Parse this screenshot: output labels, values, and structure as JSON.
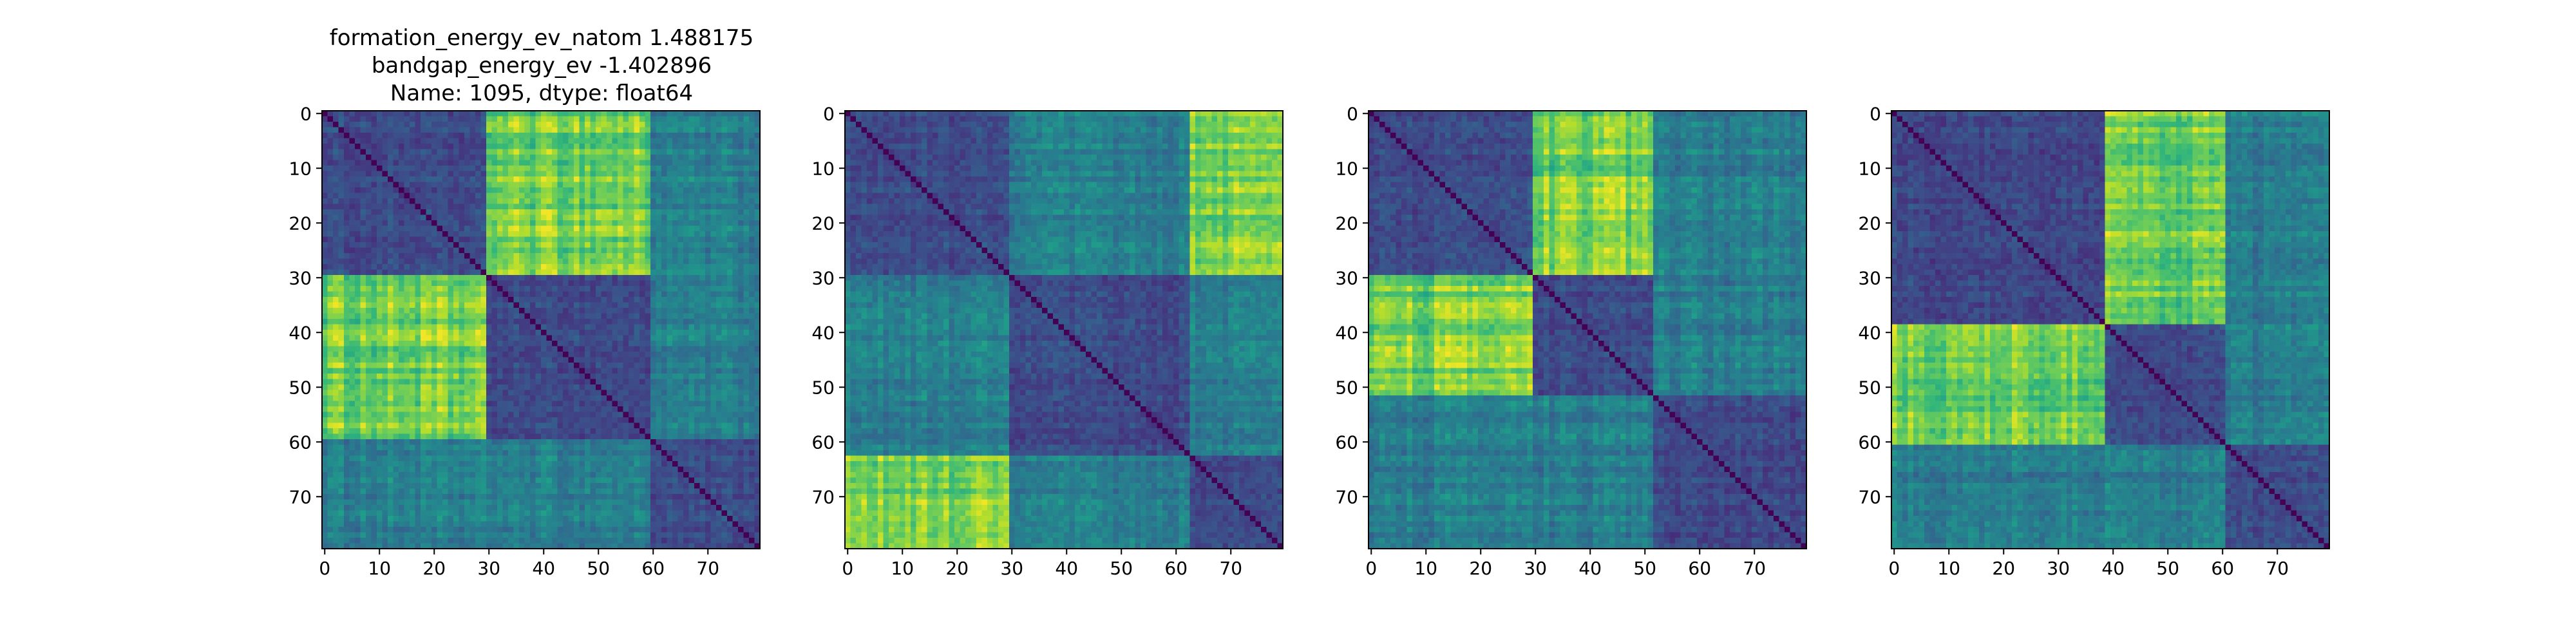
{
  "figure": {
    "title_lines": [
      "formation_energy_ev_natom    1.488175",
      "bandgap_energy_ev           -1.402896",
      "Name: 1095, dtype: float64"
    ]
  },
  "chart_data": [
    {
      "type": "heatmap",
      "title": "",
      "size": 80,
      "colormap": "viridis",
      "diagonal": "minimum",
      "groups": [
        30,
        30,
        20
      ],
      "bright_off_block": [
        0,
        1
      ],
      "xticks": [
        0,
        10,
        20,
        30,
        40,
        50,
        60,
        70
      ],
      "yticks": [
        0,
        10,
        20,
        30,
        40,
        50,
        60,
        70
      ],
      "xlim": [
        0,
        79
      ],
      "ylim": [
        79,
        0
      ]
    },
    {
      "type": "heatmap",
      "title": "",
      "size": 80,
      "colormap": "viridis",
      "diagonal": "minimum",
      "groups": [
        30,
        33,
        17
      ],
      "bright_off_block": [
        0,
        2
      ],
      "xticks": [
        0,
        10,
        20,
        30,
        40,
        50,
        60,
        70
      ],
      "yticks": [
        0,
        10,
        20,
        30,
        40,
        50,
        60,
        70
      ],
      "xlim": [
        0,
        79
      ],
      "ylim": [
        79,
        0
      ]
    },
    {
      "type": "heatmap",
      "title": "",
      "size": 80,
      "colormap": "viridis",
      "diagonal": "minimum",
      "groups": [
        30,
        22,
        28
      ],
      "bright_off_block": [
        0,
        1
      ],
      "xticks": [
        0,
        10,
        20,
        30,
        40,
        50,
        60,
        70
      ],
      "yticks": [
        0,
        10,
        20,
        30,
        40,
        50,
        60,
        70
      ],
      "xlim": [
        0,
        79
      ],
      "ylim": [
        79,
        0
      ]
    },
    {
      "type": "heatmap",
      "title": "",
      "size": 80,
      "colormap": "viridis",
      "diagonal": "minimum",
      "groups": [
        39,
        22,
        19
      ],
      "bright_off_block": [
        0,
        1
      ],
      "xticks": [
        0,
        10,
        20,
        30,
        40,
        50,
        60,
        70
      ],
      "yticks": [
        0,
        10,
        20,
        30,
        40,
        50,
        60,
        70
      ],
      "xlim": [
        0,
        79
      ],
      "ylim": [
        79,
        0
      ]
    }
  ]
}
